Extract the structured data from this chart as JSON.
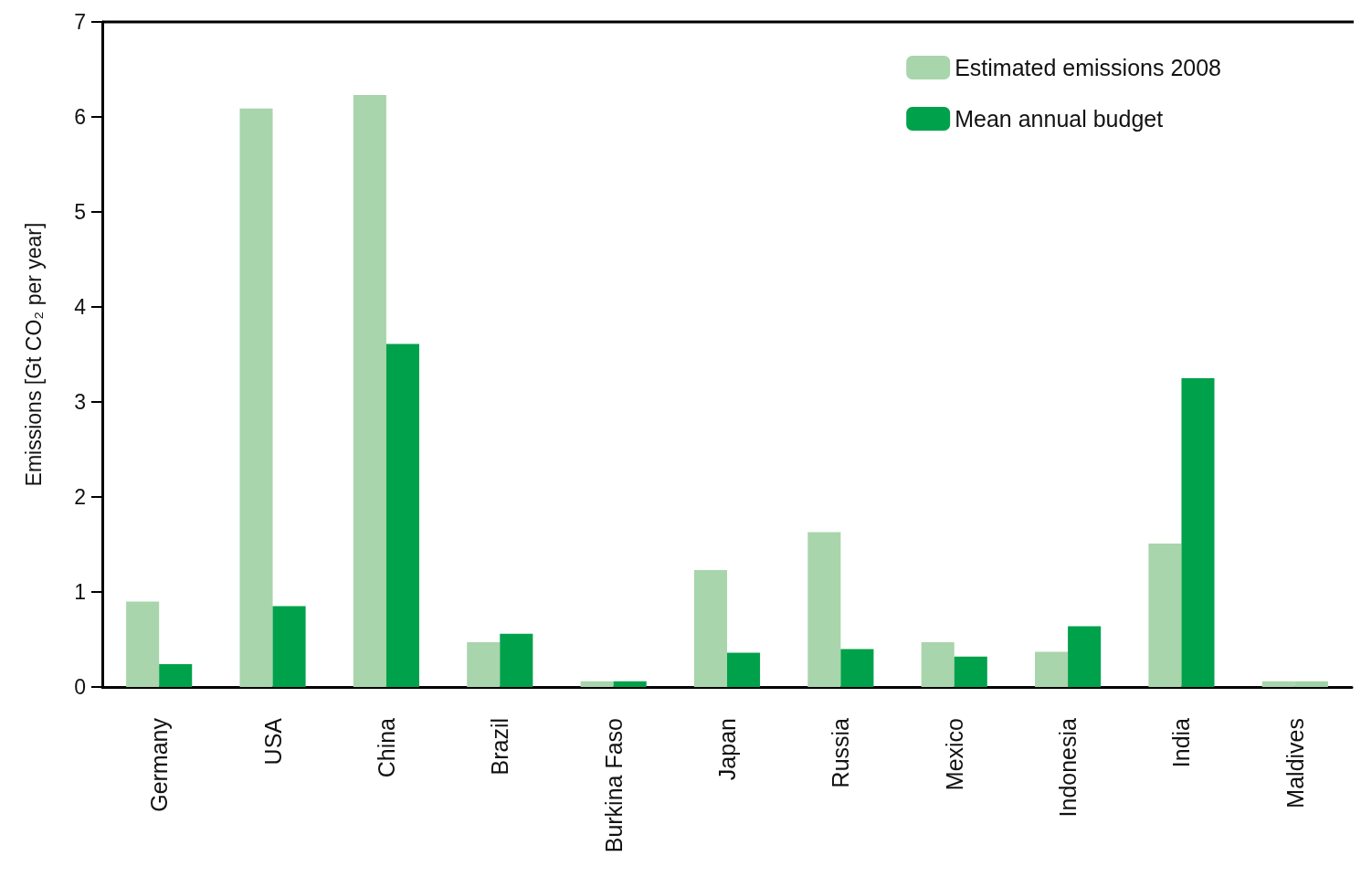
{
  "chart_data": {
    "type": "bar",
    "ylabel": "Emissions [Gt CO₂ per year]",
    "categories": [
      "Germany",
      "USA",
      "China",
      "Brazil",
      "Burkina Faso",
      "Japan",
      "Russia",
      "Mexico",
      "Indonesia",
      "India",
      "Maldives"
    ],
    "series": [
      {
        "name": "Estimated emissions 2008",
        "color": "#a8d5ab",
        "values": [
          0.9,
          6.09,
          6.23,
          0.47,
          0.06,
          1.23,
          1.63,
          0.47,
          0.37,
          1.51,
          0.06
        ]
      },
      {
        "name": "Mean annual budget",
        "color": "#00a14b",
        "colors": [
          "#00a14b",
          "#00a14b",
          "#00a14b",
          "#00a14b",
          "#00a14b",
          "#00a14b",
          "#00a14b",
          "#00a14b",
          "#00a14b",
          "#00a14b",
          "#9fd3a6"
        ],
        "values": [
          0.24,
          0.85,
          3.61,
          0.56,
          0.06,
          0.36,
          0.4,
          0.32,
          0.64,
          3.25,
          0.06
        ]
      }
    ],
    "ylim": [
      0,
      7
    ],
    "yticks": [
      0,
      1,
      2,
      3,
      4,
      5,
      6,
      7
    ],
    "grid": false,
    "legend": "top right"
  }
}
